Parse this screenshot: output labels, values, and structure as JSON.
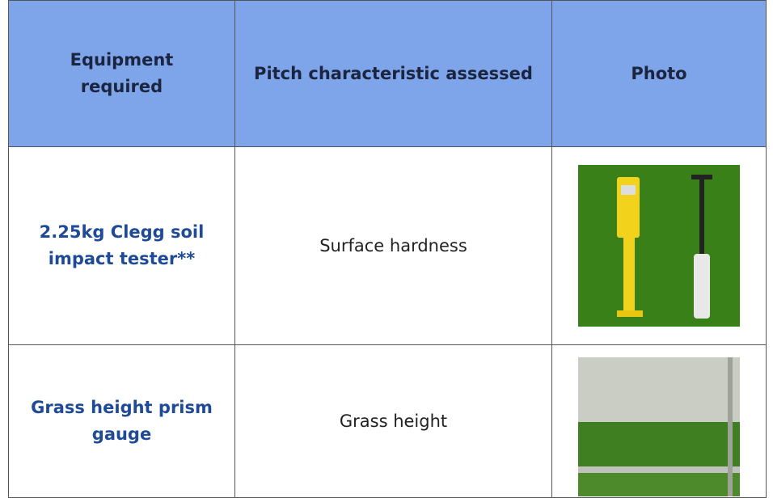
{
  "table": {
    "header": [
      "Equipment required",
      "Pitch characteristic assessed",
      "Photo"
    ],
    "rows": [
      [
        "2.25kg Clegg soil impact tester**",
        "Surface hardness"
      ],
      [
        "Grass height prism gauge",
        "Grass height"
      ]
    ]
  }
}
